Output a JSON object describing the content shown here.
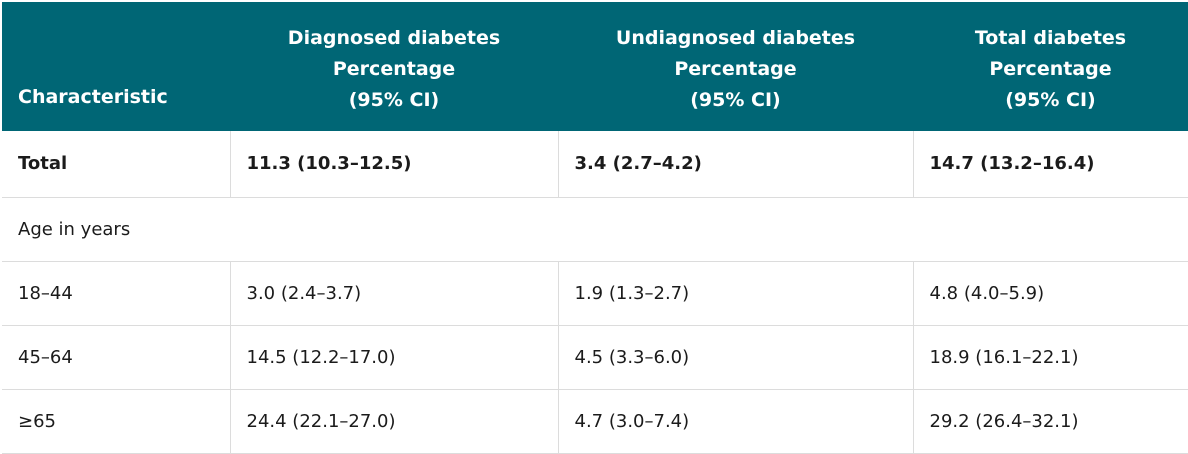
{
  "header": {
    "characteristic": "Characteristic",
    "diagnosed": "Diagnosed diabetes\nPercentage\n(95% CI)",
    "undiagnosed": "Undiagnosed diabetes\nPercentage\n(95% CI)",
    "total": "Total diabetes\nPercentage\n(95% CI)"
  },
  "rows": {
    "total": {
      "label": "Total",
      "diagnosed": "11.3 (10.3–12.5)",
      "undiagnosed": "3.4 (2.7–4.2)",
      "total": "14.7 (13.2–16.4)"
    },
    "section_age": {
      "label": "Age in years"
    },
    "age_18_44": {
      "label": "18–44",
      "diagnosed": "3.0 (2.4–3.7)",
      "undiagnosed": "1.9 (1.3–2.7)",
      "total": "4.8 (4.0–5.9)"
    },
    "age_45_64": {
      "label": "45–64",
      "diagnosed": "14.5 (12.2–17.0)",
      "undiagnosed": "4.5 (3.3–6.0)",
      "total": "18.9 (16.1–22.1)"
    },
    "age_65_plus": {
      "label": "≥65",
      "diagnosed": "24.4 (22.1–27.0)",
      "undiagnosed": "4.7 (3.0–7.4)",
      "total": "29.2 (26.4–32.1)"
    }
  },
  "colors": {
    "header_bg": "#006675",
    "header_text": "#ffffff",
    "border": "#dcdcdc"
  }
}
